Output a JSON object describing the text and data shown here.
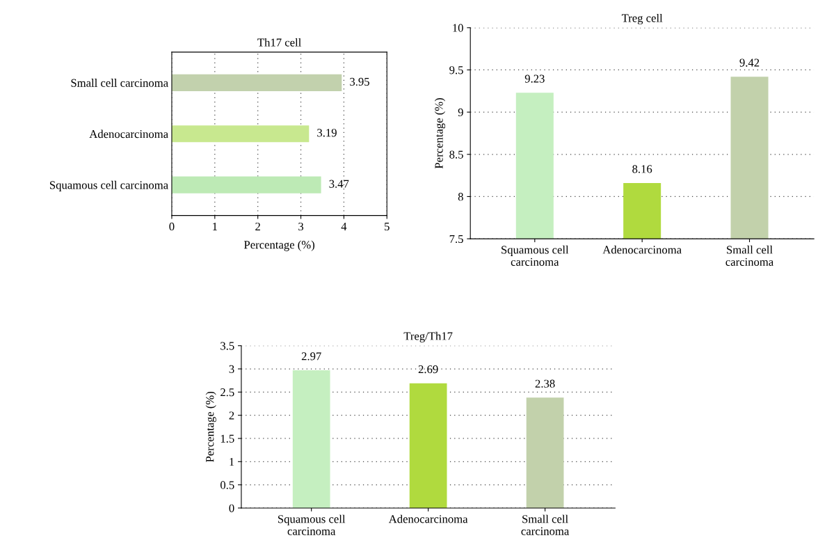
{
  "chart_data": [
    {
      "type": "bar",
      "orientation": "horizontal",
      "title": "Th17 cell",
      "xlabel": "Percentage (%)",
      "categories": [
        "Small cell carcinoma",
        "Adenocarcinoma",
        "Squamous cell carcinoma"
      ],
      "values": [
        3.95,
        3.19,
        3.47
      ],
      "colors": [
        "#c2d1ad",
        "#c8e88f",
        "#bdeab5"
      ],
      "xlim": [
        0,
        5
      ],
      "xticks": [
        0,
        1,
        2,
        3,
        4,
        5
      ],
      "grid": "x",
      "data_labels": true
    },
    {
      "type": "bar",
      "title": "Treg cell",
      "ylabel": "Percentage (%)",
      "categories": [
        "Squamous cell\ncarcinoma",
        "Adenocarcinoma",
        "Small cell\ncarcinoma"
      ],
      "values": [
        9.23,
        8.16,
        9.42
      ],
      "colors": [
        "#c5efc0",
        "#b0da3e",
        "#c2d1ab"
      ],
      "ylim": [
        7.5,
        10
      ],
      "yticks": [
        7.5,
        8,
        8.5,
        9,
        9.5,
        10
      ],
      "grid": "y",
      "data_labels": true
    },
    {
      "type": "bar",
      "title": "Treg/Th17",
      "ylabel": "Percentage (%)",
      "categories": [
        "Squamous cell\ncarcinoma",
        "Adenocarcinoma",
        "Small cell\ncarcinoma"
      ],
      "values": [
        2.97,
        2.69,
        2.38
      ],
      "colors": [
        "#c5efc0",
        "#b0da3e",
        "#c2d1ab"
      ],
      "ylim": [
        0,
        3.5
      ],
      "yticks": [
        0,
        0.5,
        1,
        1.5,
        2,
        2.5,
        3,
        3.5
      ],
      "grid": "y",
      "data_labels": true
    }
  ]
}
